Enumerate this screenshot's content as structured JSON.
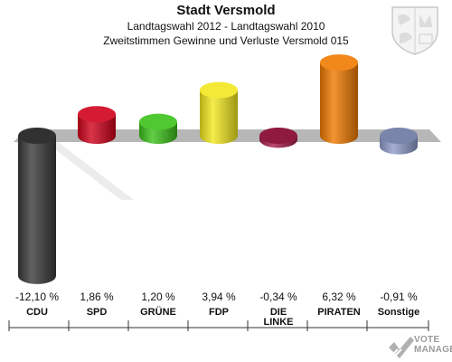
{
  "header": {
    "title": "Stadt Versmold",
    "subtitle1": "Landtagswahl 2012 - Landtagswahl 2010",
    "subtitle2": "Zweitstimmen Gewinne und Verluste Versmold 015"
  },
  "logo": {
    "line1": "VOTE",
    "line2": "MANAGER"
  },
  "chart_data": {
    "type": "bar",
    "title": "Stadt Versmold",
    "subtitle": "Landtagswahl 2012 - Landtagswahl 2010 / Zweitstimmen Gewinne und Verluste Versmold 015",
    "xlabel": "",
    "ylabel": "",
    "categories": [
      "CDU",
      "SPD",
      "GRÜNE",
      "FDP",
      "DIE LINKE",
      "PIRATEN",
      "Sonstige"
    ],
    "values": [
      -12.1,
      1.86,
      1.2,
      3.94,
      -0.34,
      6.32,
      -0.91
    ],
    "value_labels": [
      "-12,10 %",
      "1,86 %",
      "1,20 %",
      "3,94 %",
      "-0,34 %",
      "6,32 %",
      "-0,91 %"
    ],
    "colors": [
      "#3a3a3a",
      "#d0021b",
      "#3cc21a",
      "#f3e81f",
      "#a81e4a",
      "#f07b00",
      "#8e9cc9"
    ],
    "ylim": [
      -13,
      7
    ],
    "grid": false,
    "legend": "none"
  }
}
